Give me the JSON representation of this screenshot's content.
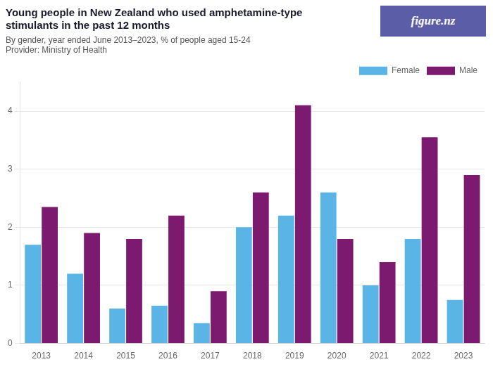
{
  "chart_data": {
    "type": "bar",
    "title": [
      "Young people in New Zealand who used amphetamine-type",
      "stimulants in the past 12 months"
    ],
    "subtitle": "By gender, year ended June 2013–2023, % of people aged 15-24",
    "annotations": [
      "Provider: Ministry of Health",
      "figure.nz"
    ],
    "categories": [
      "2013",
      "2014",
      "2015",
      "2016",
      "2017",
      "2018",
      "2019",
      "2020",
      "2021",
      "2022",
      "2023"
    ],
    "series": [
      {
        "name": "Female",
        "color": "#5ab4e5",
        "values": [
          1.7,
          1.2,
          0.6,
          0.65,
          0.35,
          2.0,
          2.2,
          2.6,
          1.0,
          1.8,
          0.75
        ]
      },
      {
        "name": "Male",
        "color": "#7b1a6e",
        "values": [
          2.35,
          1.9,
          1.8,
          2.2,
          0.9,
          2.6,
          4.1,
          1.8,
          1.4,
          3.55,
          2.9
        ]
      }
    ],
    "ylim": [
      0,
      4.5
    ],
    "yticks": [
      0,
      1,
      2,
      3,
      4
    ],
    "grid": true,
    "legend": "upper right"
  }
}
